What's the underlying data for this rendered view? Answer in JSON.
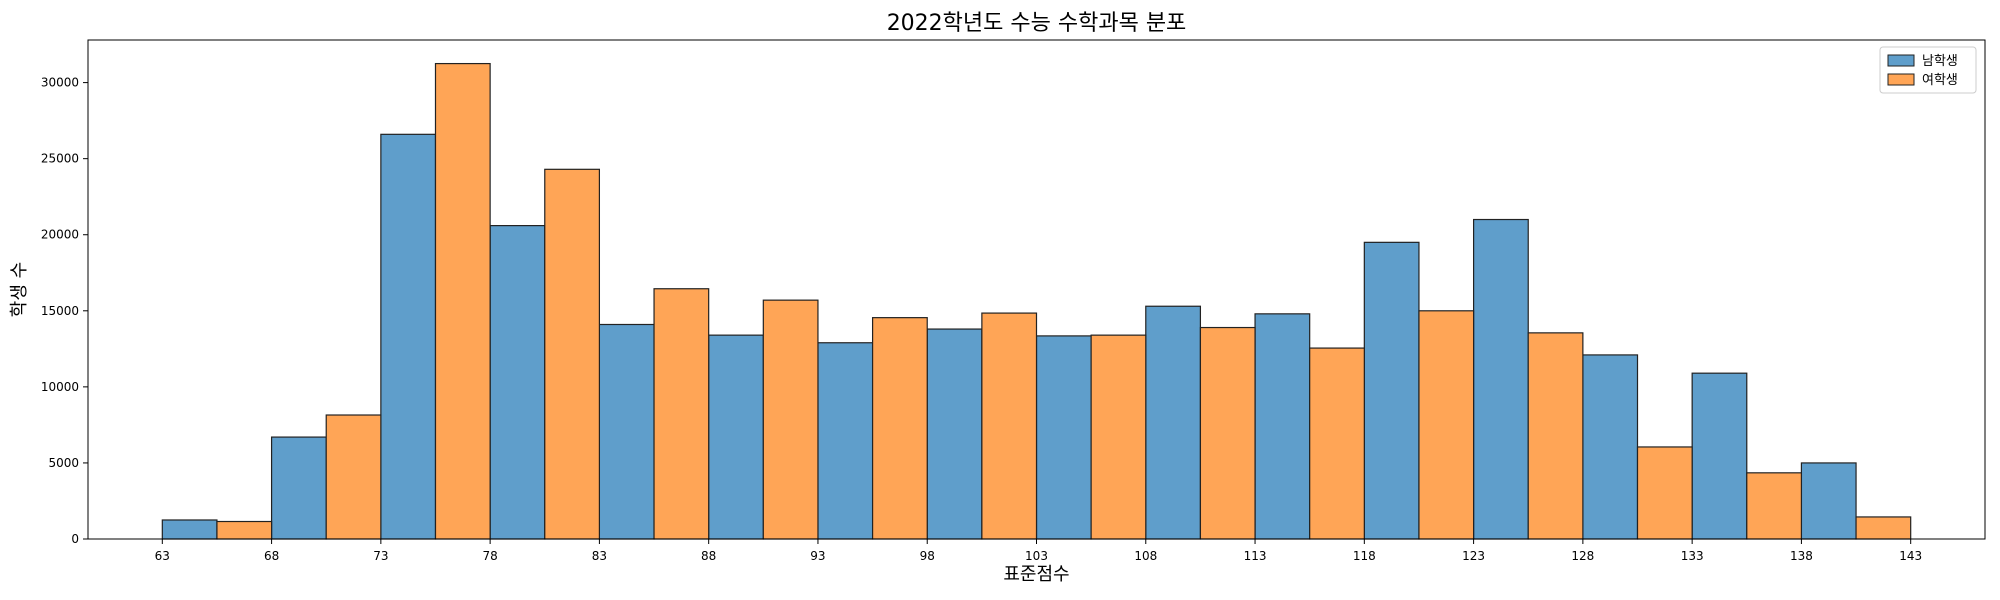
{
  "chart_data": {
    "type": "bar",
    "title": "2022학년도 수능 수학과목 분포",
    "xlabel": "표준점수",
    "ylabel": "학생 수",
    "xlim": [
      59.6,
      146.4
    ],
    "ylim": [
      0,
      32800
    ],
    "x_ticks": [
      63,
      68,
      73,
      78,
      83,
      88,
      93,
      98,
      103,
      108,
      113,
      118,
      123,
      128,
      133,
      138,
      143
    ],
    "y_ticks": [
      0,
      5000,
      10000,
      15000,
      20000,
      25000,
      30000
    ],
    "bin_edges": [
      63,
      68,
      73,
      78,
      83,
      88,
      93,
      98,
      103,
      108,
      113,
      118,
      123,
      128,
      133,
      138,
      143
    ],
    "grid": false,
    "legend_position": "top-right",
    "series": [
      {
        "name": "남학생",
        "color": "#5f9ecb",
        "values": [
          1250,
          6700,
          26600,
          20600,
          14100,
          13400,
          12900,
          13800,
          13350,
          15300,
          14800,
          19500,
          21000,
          12100,
          10900,
          5000
        ]
      },
      {
        "name": "여학생",
        "color": "#ffa556",
        "values": [
          1150,
          8150,
          31250,
          24300,
          16450,
          15700,
          14550,
          14850,
          13400,
          13900,
          12550,
          15000,
          13550,
          6050,
          4350,
          1450
        ]
      }
    ]
  }
}
